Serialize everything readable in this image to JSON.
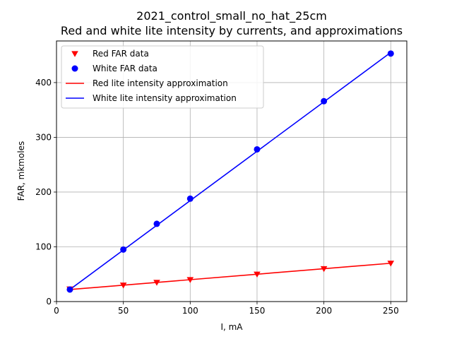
{
  "chart_data": {
    "type": "line",
    "title": "2021_control_small_no_hat_25cm",
    "subtitle": "Red and white lite intensity by currents, and approximations",
    "xlabel": "I, mA",
    "ylabel": "FAR, mkmoles",
    "xlim": [
      0,
      262
    ],
    "ylim": [
      0,
      476
    ],
    "x_ticks": [
      0,
      50,
      100,
      150,
      200,
      250
    ],
    "y_ticks": [
      0,
      100,
      200,
      300,
      400
    ],
    "grid": true,
    "legend_position": "top-left",
    "series": [
      {
        "name": "Red FAR data",
        "kind": "scatter",
        "marker": "triangle-down",
        "color": "#ff0000",
        "x": [
          10,
          50,
          75,
          100,
          150,
          200,
          250
        ],
        "y": [
          23,
          30,
          35,
          40,
          50,
          60,
          70
        ]
      },
      {
        "name": "White FAR data",
        "kind": "scatter",
        "marker": "circle",
        "color": "#0000ff",
        "x": [
          10,
          50,
          75,
          100,
          150,
          200,
          250
        ],
        "y": [
          22,
          95,
          142,
          188,
          278,
          366,
          453
        ]
      },
      {
        "name": "Red lite intensity approximation",
        "kind": "line",
        "color": "#ff0000",
        "x": [
          10,
          250
        ],
        "y": [
          22,
          70
        ]
      },
      {
        "name": "White lite intensity approximation",
        "kind": "line",
        "color": "#0000ff",
        "x": [
          10,
          250
        ],
        "y": [
          22,
          455
        ]
      }
    ]
  }
}
